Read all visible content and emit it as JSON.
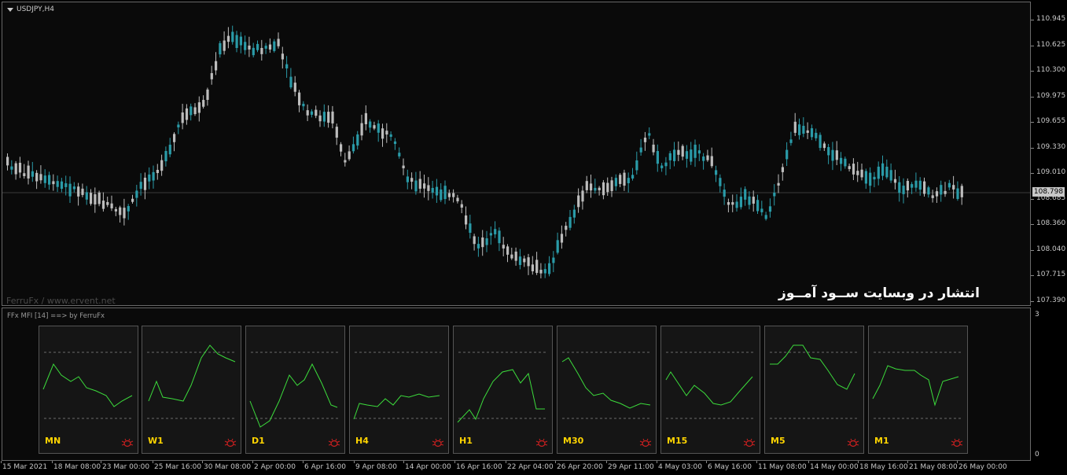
{
  "chart": {
    "title": "USDJPY,H4",
    "watermark": "FerruFx / www.ervent.net",
    "overlay_text": "انتشار در وبسایت ســود آمــوز",
    "price_ticks": [
      "110.945",
      "110.625",
      "110.300",
      "109.975",
      "109.655",
      "109.330",
      "109.010",
      "108.685",
      "108.360",
      "108.040",
      "107.715",
      "107.390"
    ],
    "current_price": "108.798",
    "colors": {
      "bull": "#2a9ba8",
      "bear": "#bdbdbd",
      "price_line": "#3a3a3a"
    }
  },
  "indicator": {
    "title": "FFx MFI [14] ==> by FerruFx",
    "scale_max": "3",
    "scale_min": "0",
    "line_color": "#3cdc3c",
    "label_color": "#ffd400",
    "icon_color": "#cc2020",
    "panels": [
      {
        "label": "MN",
        "icon": "bug-alert-icon"
      },
      {
        "label": "W1",
        "icon": "bug-alert-icon"
      },
      {
        "label": "D1",
        "icon": "bug-alert-icon"
      },
      {
        "label": "H4",
        "icon": "bug-alert-icon"
      },
      {
        "label": "H1",
        "icon": "bug-alert-icon"
      },
      {
        "label": "M30",
        "icon": "bug-alert-icon"
      },
      {
        "label": "M15",
        "icon": "bug-alert-icon"
      },
      {
        "label": "M5",
        "icon": "bug-alert-icon"
      },
      {
        "label": "M1",
        "icon": "bug-alert-icon"
      }
    ]
  },
  "time_axis": [
    "15 Mar 2021",
    "18 Mar 08:00",
    "23 Mar 00:00",
    "25 Mar 16:00",
    "30 Mar 08:00",
    "2 Apr 00:00",
    "6 Apr 16:00",
    "9 Apr 08:00",
    "14 Apr 00:00",
    "16 Apr 16:00",
    "22 Apr 04:00",
    "26 Apr 20:00",
    "29 Apr 11:00",
    "4 May 03:00",
    "6 May 16:00",
    "11 May 08:00",
    "14 May 00:00",
    "18 May 16:00",
    "21 May 08:00",
    "26 May 00:00"
  ]
}
